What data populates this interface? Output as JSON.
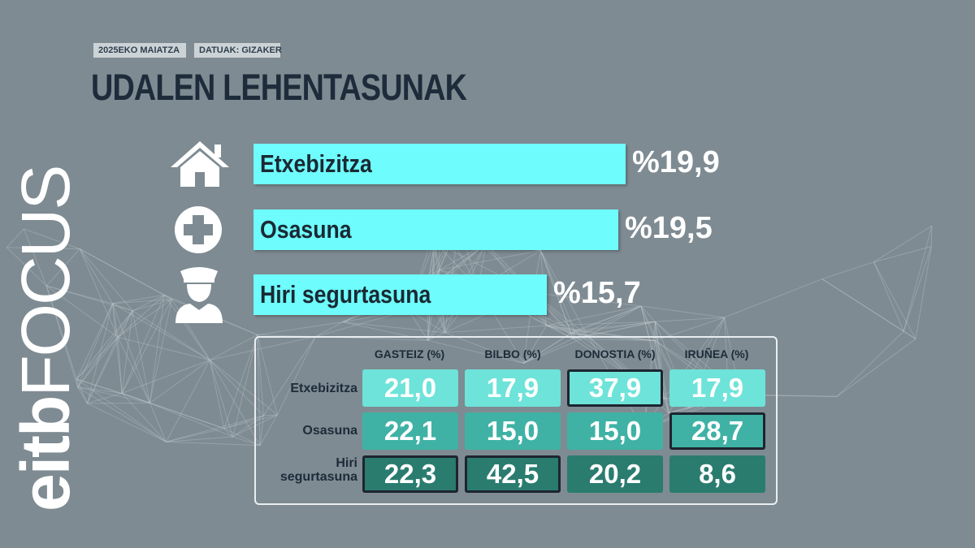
{
  "header": {
    "date": "2025EKO MAIATZA",
    "source": "DATUAK: GIZAKER",
    "title": "UDALEN LEHENTASUNAK"
  },
  "logo": {
    "part1": "eitb",
    "part2": "FOCUS"
  },
  "colors": {
    "background": "#7e8b92",
    "bar": "#6efcfd",
    "row_etxebizitza": "#6ee3d9",
    "row_osasuna": "#3fb2a5",
    "row_hiri": "#2a7c6f",
    "highlight_border": "#1d2530",
    "title": "#1d2b3a"
  },
  "chart_data": [
    {
      "type": "bar",
      "orientation": "horizontal",
      "categories": [
        "Etxebizitza",
        "Osasuna",
        "Hiri segurtasuna"
      ],
      "icons": [
        "house-icon",
        "health-cross-icon",
        "police-officer-icon"
      ],
      "values": [
        19.9,
        19.5,
        15.7
      ],
      "value_labels": [
        "%19,9",
        "%19,5",
        "%15,7"
      ]
    },
    {
      "type": "table",
      "columns": [
        "GASTEIZ (%)",
        "BILBO (%)",
        "DONOSTIA (%)",
        "IRUÑEA (%)"
      ],
      "rows": [
        {
          "label": [
            "Etxebizitza"
          ],
          "values": [
            "21,0",
            "17,9",
            "37,9",
            "17,9"
          ],
          "highlight": [
            false,
            false,
            true,
            false
          ]
        },
        {
          "label": [
            "Osasuna"
          ],
          "values": [
            "22,1",
            "15,0",
            "15,0",
            "28,7"
          ],
          "highlight": [
            false,
            false,
            false,
            true
          ]
        },
        {
          "label": [
            "Hiri",
            "segurtasuna"
          ],
          "values": [
            "22,3",
            "42,5",
            "20,2",
            "8,6"
          ],
          "highlight": [
            true,
            true,
            false,
            false
          ]
        }
      ]
    }
  ]
}
